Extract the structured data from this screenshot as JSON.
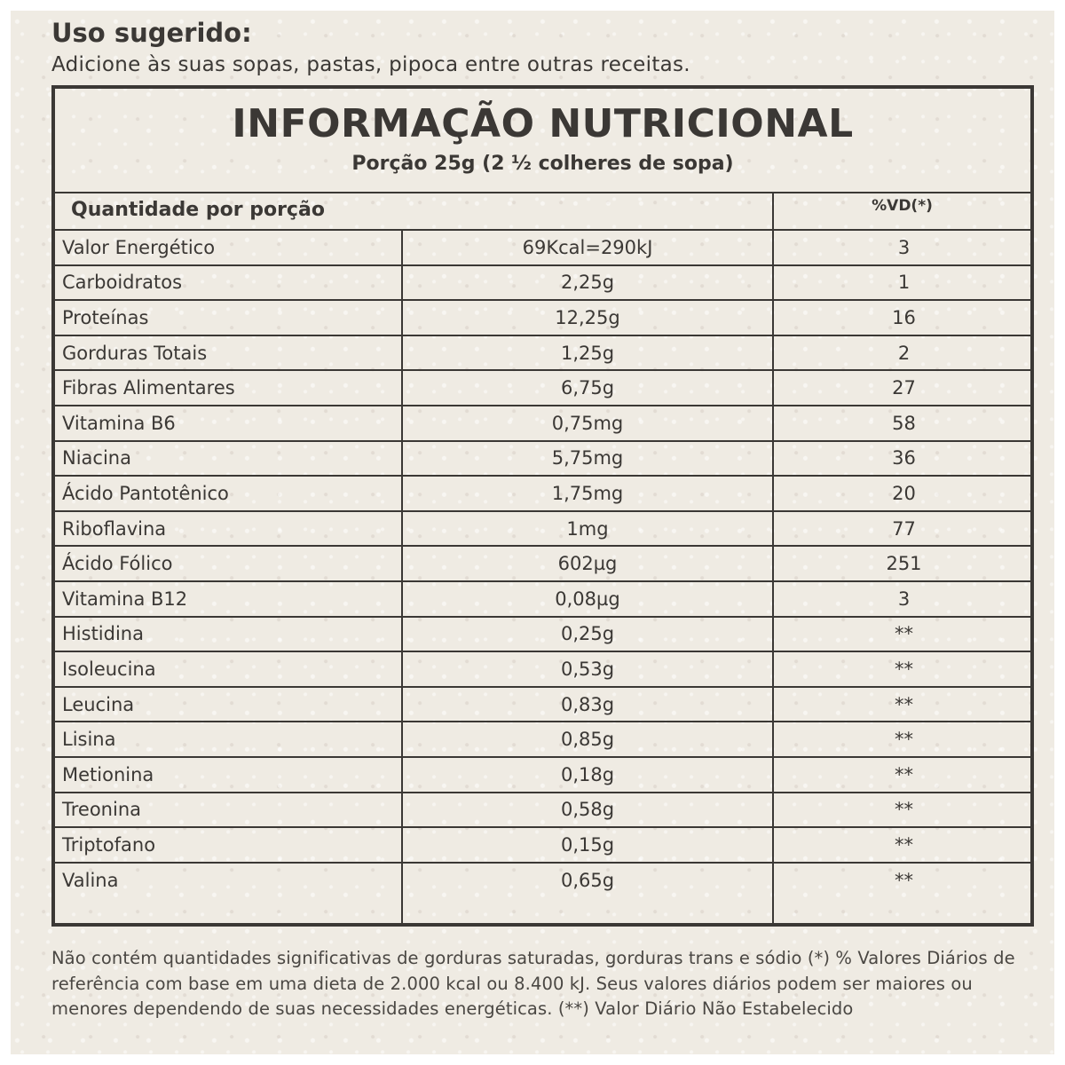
{
  "usage": {
    "title": "Uso sugerido:",
    "text": "Adicione às suas sopas, pastas, pipoca entre outras receitas."
  },
  "table": {
    "title": "INFORMAÇÃO NUTRICIONAL",
    "subtitle": "Porção 25g (2 ½  colheres de sopa)",
    "header_left": "Quantidade por porção",
    "header_right": "%VD(*)",
    "rows": [
      {
        "name": "Valor Energético",
        "amount": "69Kcal=290kJ",
        "vd": "3"
      },
      {
        "name": "Carboidratos",
        "amount": "2,25g",
        "vd": "1"
      },
      {
        "name": "Proteínas",
        "amount": "12,25g",
        "vd": "16"
      },
      {
        "name": "Gorduras Totais",
        "amount": "1,25g",
        "vd": "2"
      },
      {
        "name": "Fibras Alimentares",
        "amount": "6,75g",
        "vd": "27"
      },
      {
        "name": "Vitamina B6",
        "amount": "0,75mg",
        "vd": "58"
      },
      {
        "name": "Niacina",
        "amount": "5,75mg",
        "vd": "36"
      },
      {
        "name": "Ácido Pantotênico",
        "amount": "1,75mg",
        "vd": "20"
      },
      {
        "name": "Riboflavina",
        "amount": "1mg",
        "vd": "77"
      },
      {
        "name": "Ácido Fólico",
        "amount": "602µg",
        "vd": "251"
      },
      {
        "name": "Vitamina B12",
        "amount": "0,08µg",
        "vd": "3"
      },
      {
        "name": "Histidina",
        "amount": "0,25g",
        "vd": "**"
      },
      {
        "name": "Isoleucina",
        "amount": "0,53g",
        "vd": "**"
      },
      {
        "name": "Leucina",
        "amount": "0,83g",
        "vd": "**"
      },
      {
        "name": "Lisina",
        "amount": "0,85g",
        "vd": "**"
      },
      {
        "name": "Metionina",
        "amount": "0,18g",
        "vd": "**"
      },
      {
        "name": "Treonina",
        "amount": "0,58g",
        "vd": "**"
      },
      {
        "name": "Triptofano",
        "amount": "0,15g",
        "vd": "**"
      },
      {
        "name": "Valina",
        "amount": "0,65g",
        "vd": "**"
      }
    ]
  },
  "footnote": "Não contém quantidades significativas de gorduras saturadas, gorduras trans e sódio (*) % Valores Diários de referência com base em uma dieta de 2.000 kcal ou 8.400 kJ. Seus valores diários podem ser maiores ou menores dependendo de suas necessidades energéticas. (**) Valor Diário Não Estabelecido"
}
